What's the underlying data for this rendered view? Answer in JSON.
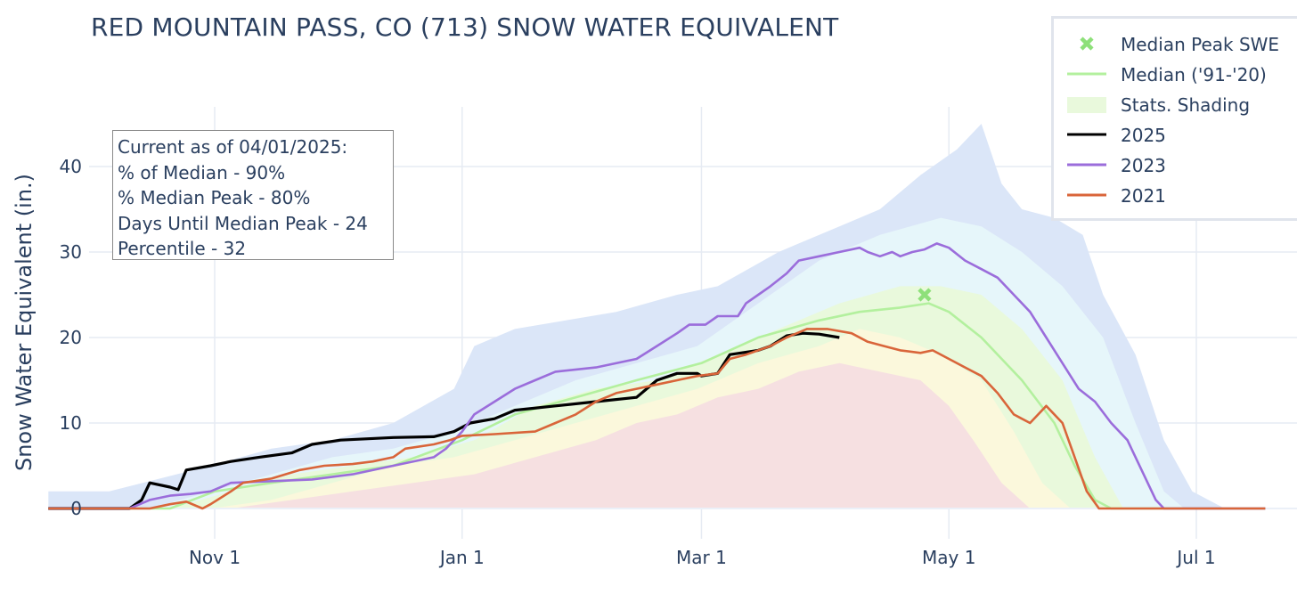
{
  "chart_data": {
    "type": "line",
    "title": "RED MOUNTAIN PASS, CO (713) SNOW WATER EQUIVALENT",
    "ylabel": "Snow Water Equivalent (in.)",
    "xlabel": "",
    "x_unit": "day of water year (Oct 1 = 0)",
    "xlim": [
      -10,
      290
    ],
    "ylim": [
      -2,
      46
    ],
    "x_ticks": [
      {
        "day": 31,
        "label": "Nov  1"
      },
      {
        "day": 92,
        "label": "Jan  1"
      },
      {
        "day": 151,
        "label": "Mar  1"
      },
      {
        "day": 212,
        "label": "May  1"
      },
      {
        "day": 273,
        "label": "Jul  1"
      }
    ],
    "y_ticks": [
      0,
      10,
      20,
      30,
      40
    ],
    "grid": true,
    "bands": [
      {
        "name": "max-band",
        "color": "#dbe6f8",
        "upper": [
          [
            -10,
            2
          ],
          [
            5,
            2
          ],
          [
            30,
            5
          ],
          [
            45,
            7
          ],
          [
            60,
            8
          ],
          [
            75,
            10
          ],
          [
            90,
            14
          ],
          [
            95,
            19
          ],
          [
            105,
            21
          ],
          [
            130,
            23
          ],
          [
            145,
            25
          ],
          [
            155,
            26
          ],
          [
            170,
            30
          ],
          [
            185,
            33
          ],
          [
            195,
            35
          ],
          [
            205,
            39
          ],
          [
            214,
            42
          ],
          [
            220,
            45
          ],
          [
            225,
            38
          ],
          [
            230,
            35
          ],
          [
            238,
            34
          ],
          [
            245,
            32
          ],
          [
            250,
            25
          ],
          [
            258,
            18
          ],
          [
            265,
            8
          ],
          [
            272,
            2
          ],
          [
            280,
            0
          ],
          [
            290,
            0
          ]
        ],
        "lower": [
          [
            -10,
            0
          ],
          [
            290,
            0
          ]
        ]
      },
      {
        "name": "p90-band",
        "color": "#e6f6fa",
        "upper": [
          [
            -10,
            0
          ],
          [
            15,
            0
          ],
          [
            30,
            2
          ],
          [
            45,
            4
          ],
          [
            60,
            6
          ],
          [
            75,
            7
          ],
          [
            90,
            9
          ],
          [
            105,
            12
          ],
          [
            120,
            15
          ],
          [
            135,
            17
          ],
          [
            150,
            19
          ],
          [
            165,
            24
          ],
          [
            180,
            29
          ],
          [
            195,
            32
          ],
          [
            210,
            34
          ],
          [
            220,
            33
          ],
          [
            230,
            30
          ],
          [
            240,
            26
          ],
          [
            250,
            20
          ],
          [
            258,
            10
          ],
          [
            265,
            2
          ],
          [
            270,
            0
          ],
          [
            290,
            0
          ]
        ],
        "lower": [
          [
            -10,
            0
          ],
          [
            290,
            0
          ]
        ]
      },
      {
        "name": "p70-band",
        "color": "#e9f9dc",
        "upper": [
          [
            -10,
            0
          ],
          [
            20,
            0
          ],
          [
            35,
            2
          ],
          [
            50,
            4
          ],
          [
            65,
            5
          ],
          [
            80,
            6
          ],
          [
            95,
            8
          ],
          [
            110,
            12
          ],
          [
            125,
            14
          ],
          [
            140,
            15
          ],
          [
            155,
            18
          ],
          [
            170,
            21
          ],
          [
            185,
            24
          ],
          [
            200,
            26
          ],
          [
            210,
            26
          ],
          [
            220,
            25
          ],
          [
            230,
            21
          ],
          [
            240,
            15
          ],
          [
            248,
            6
          ],
          [
            255,
            0
          ],
          [
            290,
            0
          ]
        ],
        "lower": [
          [
            -10,
            0
          ],
          [
            290,
            0
          ]
        ]
      },
      {
        "name": "p30-band",
        "color": "#fbf8dc",
        "upper": [
          [
            -10,
            0
          ],
          [
            30,
            0
          ],
          [
            45,
            1
          ],
          [
            60,
            3
          ],
          [
            75,
            5
          ],
          [
            90,
            6
          ],
          [
            105,
            8
          ],
          [
            120,
            10
          ],
          [
            135,
            12
          ],
          [
            150,
            14
          ],
          [
            165,
            17
          ],
          [
            180,
            19
          ],
          [
            190,
            21
          ],
          [
            200,
            20
          ],
          [
            210,
            18
          ],
          [
            220,
            15
          ],
          [
            228,
            9
          ],
          [
            235,
            3
          ],
          [
            242,
            0
          ],
          [
            290,
            0
          ]
        ],
        "lower": [
          [
            -10,
            0
          ],
          [
            290,
            0
          ]
        ]
      },
      {
        "name": "p10-band",
        "color": "#f6e0e1",
        "upper": [
          [
            -10,
            0
          ],
          [
            35,
            0
          ],
          [
            50,
            1
          ],
          [
            65,
            2
          ],
          [
            80,
            3
          ],
          [
            95,
            4
          ],
          [
            110,
            6
          ],
          [
            125,
            8
          ],
          [
            135,
            10
          ],
          [
            145,
            11
          ],
          [
            155,
            13
          ],
          [
            165,
            14
          ],
          [
            175,
            16
          ],
          [
            185,
            17
          ],
          [
            195,
            16
          ],
          [
            205,
            15
          ],
          [
            212,
            12
          ],
          [
            218,
            8
          ],
          [
            225,
            3
          ],
          [
            232,
            0
          ],
          [
            290,
            0
          ]
        ],
        "lower": [
          [
            -10,
            0
          ],
          [
            290,
            0
          ]
        ]
      }
    ],
    "series": [
      {
        "name": "Median ('91-'20)",
        "color": "#b3f09e",
        "points": [
          [
            -10,
            0
          ],
          [
            20,
            0
          ],
          [
            31,
            2
          ],
          [
            45,
            3
          ],
          [
            60,
            4
          ],
          [
            75,
            5
          ],
          [
            92,
            8
          ],
          [
            105,
            11
          ],
          [
            120,
            13
          ],
          [
            135,
            15
          ],
          [
            151,
            17
          ],
          [
            165,
            20
          ],
          [
            180,
            22
          ],
          [
            190,
            23
          ],
          [
            200,
            23.5
          ],
          [
            207,
            24
          ],
          [
            212,
            23
          ],
          [
            220,
            20
          ],
          [
            230,
            15
          ],
          [
            238,
            10
          ],
          [
            243,
            5
          ],
          [
            248,
            1
          ],
          [
            252,
            0
          ],
          [
            290,
            0
          ]
        ]
      },
      {
        "name": "2025",
        "color": "#000000",
        "points": [
          [
            -10,
            0
          ],
          [
            5,
            0
          ],
          [
            10,
            0
          ],
          [
            13,
            1
          ],
          [
            15,
            3
          ],
          [
            20,
            2.5
          ],
          [
            22,
            2.2
          ],
          [
            24,
            4.5
          ],
          [
            30,
            5
          ],
          [
            35,
            5.5
          ],
          [
            42,
            6
          ],
          [
            50,
            6.5
          ],
          [
            55,
            7.5
          ],
          [
            62,
            8
          ],
          [
            75,
            8.3
          ],
          [
            85,
            8.4
          ],
          [
            90,
            9
          ],
          [
            94,
            10
          ],
          [
            100,
            10.5
          ],
          [
            105,
            11.5
          ],
          [
            115,
            12
          ],
          [
            125,
            12.5
          ],
          [
            135,
            13
          ],
          [
            140,
            15
          ],
          [
            145,
            15.8
          ],
          [
            150,
            15.8
          ],
          [
            151,
            15.5
          ],
          [
            155,
            15.8
          ],
          [
            158,
            18
          ],
          [
            165,
            18.5
          ],
          [
            168,
            19
          ],
          [
            172,
            20.2
          ],
          [
            176,
            20.5
          ],
          [
            180,
            20.4
          ],
          [
            185,
            20
          ]
        ]
      },
      {
        "name": "2023",
        "color": "#9b6ddb",
        "points": [
          [
            -10,
            0
          ],
          [
            10,
            0
          ],
          [
            15,
            1
          ],
          [
            20,
            1.5
          ],
          [
            25,
            1.7
          ],
          [
            30,
            2
          ],
          [
            35,
            3
          ],
          [
            45,
            3.2
          ],
          [
            55,
            3.4
          ],
          [
            65,
            4
          ],
          [
            75,
            5
          ],
          [
            85,
            6
          ],
          [
            88,
            7
          ],
          [
            92,
            9
          ],
          [
            95,
            11
          ],
          [
            100,
            12.5
          ],
          [
            105,
            14
          ],
          [
            110,
            15
          ],
          [
            115,
            16
          ],
          [
            125,
            16.5
          ],
          [
            135,
            17.5
          ],
          [
            140,
            19
          ],
          [
            145,
            20.5
          ],
          [
            148,
            21.5
          ],
          [
            152,
            21.5
          ],
          [
            155,
            22.5
          ],
          [
            160,
            22.5
          ],
          [
            162,
            24
          ],
          [
            165,
            25
          ],
          [
            168,
            26
          ],
          [
            172,
            27.5
          ],
          [
            175,
            29
          ],
          [
            180,
            29.5
          ],
          [
            185,
            30
          ],
          [
            190,
            30.5
          ],
          [
            192,
            30
          ],
          [
            195,
            29.5
          ],
          [
            198,
            30
          ],
          [
            200,
            29.5
          ],
          [
            203,
            30
          ],
          [
            206,
            30.3
          ],
          [
            209,
            31
          ],
          [
            212,
            30.5
          ],
          [
            216,
            29
          ],
          [
            220,
            28
          ],
          [
            224,
            27
          ],
          [
            228,
            25
          ],
          [
            232,
            23
          ],
          [
            236,
            20
          ],
          [
            240,
            17
          ],
          [
            244,
            14
          ],
          [
            248,
            12.5
          ],
          [
            252,
            10
          ],
          [
            256,
            8
          ],
          [
            260,
            4
          ],
          [
            263,
            1
          ],
          [
            265,
            0
          ],
          [
            290,
            0
          ]
        ]
      },
      {
        "name": "2021",
        "color": "#d9653a",
        "points": [
          [
            -10,
            0
          ],
          [
            15,
            0
          ],
          [
            20,
            0.5
          ],
          [
            24,
            0.8
          ],
          [
            28,
            0
          ],
          [
            30,
            0.5
          ],
          [
            35,
            2
          ],
          [
            38,
            3
          ],
          [
            45,
            3.5
          ],
          [
            52,
            4.5
          ],
          [
            58,
            5
          ],
          [
            65,
            5.2
          ],
          [
            70,
            5.5
          ],
          [
            75,
            6
          ],
          [
            78,
            7
          ],
          [
            85,
            7.5
          ],
          [
            89,
            8
          ],
          [
            92,
            8.5
          ],
          [
            100,
            8.7
          ],
          [
            110,
            9
          ],
          [
            115,
            10
          ],
          [
            120,
            11
          ],
          [
            125,
            12.5
          ],
          [
            130,
            13.5
          ],
          [
            135,
            14
          ],
          [
            140,
            14.5
          ],
          [
            145,
            15
          ],
          [
            150,
            15.5
          ],
          [
            155,
            15.8
          ],
          [
            158,
            17.5
          ],
          [
            162,
            18
          ],
          [
            168,
            19
          ],
          [
            172,
            20
          ],
          [
            177,
            21
          ],
          [
            182,
            21
          ],
          [
            188,
            20.5
          ],
          [
            192,
            19.5
          ],
          [
            196,
            19
          ],
          [
            200,
            18.5
          ],
          [
            205,
            18.2
          ],
          [
            208,
            18.5
          ],
          [
            212,
            17.5
          ],
          [
            216,
            16.5
          ],
          [
            220,
            15.5
          ],
          [
            224,
            13.5
          ],
          [
            228,
            11
          ],
          [
            232,
            10
          ],
          [
            236,
            12
          ],
          [
            240,
            10
          ],
          [
            243,
            6
          ],
          [
            246,
            2
          ],
          [
            249,
            0
          ],
          [
            290,
            0
          ]
        ]
      }
    ],
    "markers": [
      {
        "name": "Median Peak SWE",
        "x": 206,
        "y": 25,
        "symbol": "x",
        "color": "#8ee07a"
      }
    ]
  },
  "info": {
    "lines": [
      "Current as of 04/01/2025:",
      "% of Median - 90%",
      "% Median Peak - 80%",
      "Days Until Median Peak - 24",
      "Percentile - 32"
    ]
  },
  "legend": {
    "items": [
      {
        "label": "Median Peak SWE",
        "kind": "marker",
        "color": "#8ee07a"
      },
      {
        "label": "Median ('91-'20)",
        "kind": "line",
        "color": "#b3f09e"
      },
      {
        "label": "Stats. Shading",
        "kind": "band",
        "color": "#e9f9dc"
      },
      {
        "label": "2025",
        "kind": "line",
        "color": "#000000"
      },
      {
        "label": "2023",
        "kind": "line",
        "color": "#9b6ddb"
      },
      {
        "label": "2021",
        "kind": "line",
        "color": "#d9653a"
      }
    ]
  }
}
